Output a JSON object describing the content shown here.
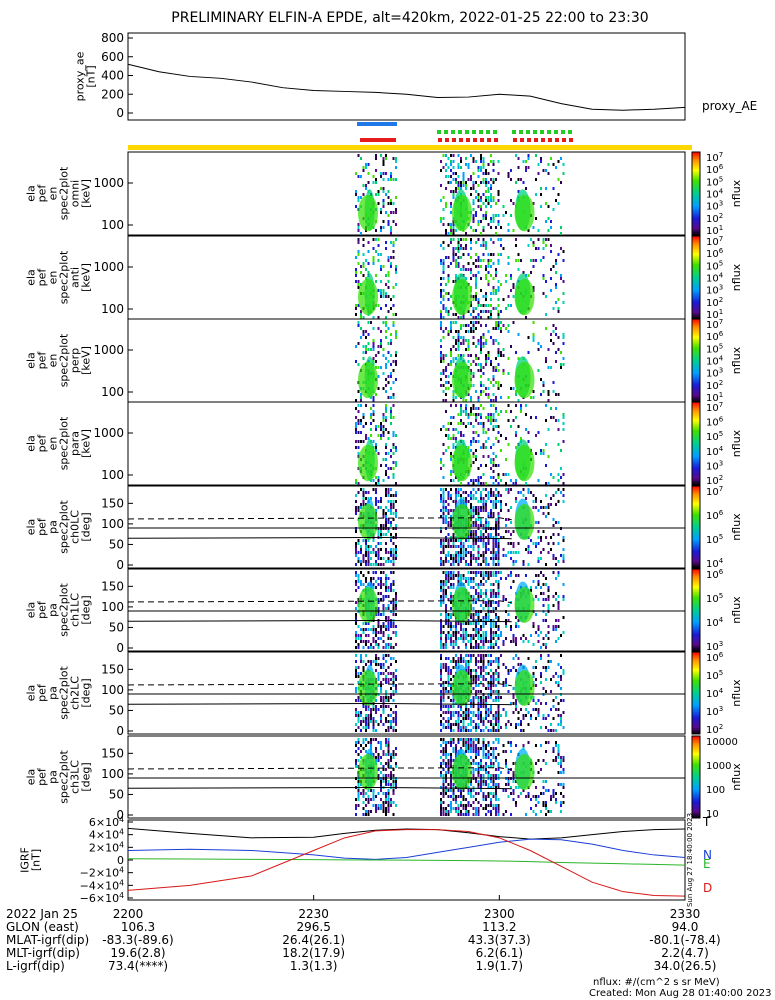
{
  "title": "PRELIMINARY ELFIN-A EPDE, alt=420km, 2022-01-25 22:00 to 23:30",
  "ae_panel": {
    "ylabel": "proxy_ae\n[nT]",
    "series_name": "proxy_AE",
    "yticks": [
      "800",
      "600",
      "400",
      "200",
      "0"
    ]
  },
  "energy_panels": [
    {
      "ylabel_lines": [
        "ela",
        "pef",
        "en",
        "spec2plot",
        "omni",
        "[keV]"
      ],
      "yticks": [
        "1000",
        "100"
      ],
      "cbar_ticks": [
        "10^7",
        "10^6",
        "10^5",
        "10^4",
        "10^3",
        "10^2",
        "10^1"
      ],
      "cbar_label": "nflux"
    },
    {
      "ylabel_lines": [
        "ela",
        "pef",
        "en",
        "spec2plot",
        "anti",
        "[keV]"
      ],
      "yticks": [
        "1000",
        "100"
      ],
      "cbar_ticks": [
        "10^7",
        "10^6",
        "10^5",
        "10^4",
        "10^3",
        "10^2",
        "10^1"
      ],
      "cbar_label": "nflux"
    },
    {
      "ylabel_lines": [
        "ela",
        "pef",
        "en",
        "spec2plot",
        "perp",
        "[keV]"
      ],
      "yticks": [
        "1000",
        "100"
      ],
      "cbar_ticks": [
        "10^7",
        "10^6",
        "10^5",
        "10^4",
        "10^3",
        "10^2",
        "10^1"
      ],
      "cbar_label": "nflux"
    },
    {
      "ylabel_lines": [
        "ela",
        "pef",
        "en",
        "spec2plot",
        "para",
        "[keV]"
      ],
      "yticks": [
        "1000",
        "100"
      ],
      "cbar_ticks": [
        "10^7",
        "10^6",
        "10^5",
        "10^4",
        "10^3",
        "10^2"
      ],
      "cbar_label": "nflux"
    }
  ],
  "pa_panels": [
    {
      "ylabel_lines": [
        "ela",
        "pef",
        "pa",
        "spec2plot",
        "ch0LC",
        "[deg]"
      ],
      "yticks": [
        "150",
        "100",
        "50",
        "0"
      ],
      "cbar_ticks": [
        "10^7",
        "10^6",
        "10^5",
        "10^4"
      ],
      "cbar_label": "nflux"
    },
    {
      "ylabel_lines": [
        "ela",
        "pef",
        "pa",
        "spec2plot",
        "ch1LC",
        "[deg]"
      ],
      "yticks": [
        "150",
        "100",
        "50",
        "0"
      ],
      "cbar_ticks": [
        "10^6",
        "10^5",
        "10^4",
        "10^3"
      ],
      "cbar_label": "nflux"
    },
    {
      "ylabel_lines": [
        "ela",
        "pef",
        "pa",
        "spec2plot",
        "ch2LC",
        "[deg]"
      ],
      "yticks": [
        "150",
        "100",
        "50",
        "0"
      ],
      "cbar_ticks": [
        "10^6",
        "10^5",
        "10^4",
        "10^3",
        "10^2"
      ],
      "cbar_label": "nflux"
    },
    {
      "ylabel_lines": [
        "ela",
        "pef",
        "pa",
        "spec2plot",
        "ch3LC",
        "[deg]"
      ],
      "yticks": [
        "150",
        "100",
        "50",
        "0"
      ],
      "cbar_ticks": [
        "10000",
        "1000",
        "100",
        "10"
      ],
      "cbar_label": "nflux"
    }
  ],
  "igrf_panel": {
    "ylabel_lines": [
      "IGRF",
      "[nT]"
    ],
    "yticks": [
      "6×10^4",
      "4×10^4",
      "2×10^4",
      "0",
      "−2×10^4",
      "−4×10^4",
      "−6×10^4"
    ],
    "legend": [
      {
        "name": "T",
        "color": "#000000"
      },
      {
        "name": "N",
        "color": "#1a3fd6"
      },
      {
        "name": "E",
        "color": "#2bb52b"
      },
      {
        "name": "D",
        "color": "#d81818"
      }
    ],
    "side_stamp": "Sun Aug 27 18:40:00 2023"
  },
  "footer": {
    "date": "2022 Jan 25",
    "time_ticks": [
      "2200",
      "2230",
      "2300",
      "2330"
    ],
    "rows": [
      {
        "label": "GLON (east)",
        "values": [
          "106.3",
          "296.5",
          "113.2",
          "94.0"
        ]
      },
      {
        "label": "MLAT-igrf(dip)",
        "values": [
          "-83.3(-89.6)",
          "26.4(26.1)",
          "43.3(37.3)",
          "-80.1(-78.4)"
        ]
      },
      {
        "label": "MLT-igrf(dip)",
        "values": [
          "19.6(2.8)",
          "18.2(17.9)",
          "6.2(6.1)",
          "2.2(4.7)"
        ]
      },
      {
        "label": "L-igrf(dip)",
        "values": [
          "73.4(****)",
          "1.3(1.3)",
          "1.9(1.7)",
          "34.0(26.5)"
        ]
      }
    ],
    "units_note": "nflux: #/(cm^2 s sr MeV)",
    "created": "Created: Mon Aug 28 01:40:00 2023"
  },
  "colors": {
    "orbit_bar_blue": "#1e78e8",
    "green_ticks": "#22cc22",
    "red_ticks": "#e61b1b",
    "yellow_bar": "#ffd700",
    "orange_bar": "#ff8c00"
  },
  "chart_data": {
    "type": "heatmap",
    "x_range": [
      "22:00",
      "23:30"
    ],
    "ae": {
      "series_name": "proxy_AE",
      "x_minutes": [
        0,
        5,
        10,
        15,
        20,
        25,
        30,
        35,
        40,
        45,
        50,
        55,
        60,
        65,
        70,
        75,
        80,
        85,
        90
      ],
      "values": [
        520,
        440,
        390,
        370,
        330,
        270,
        240,
        230,
        220,
        200,
        165,
        170,
        200,
        180,
        100,
        40,
        30,
        40,
        60
      ],
      "ylim": [
        0,
        800
      ]
    },
    "energy_ylim_keV": [
      63,
      7000
    ],
    "pa_ylim_deg": [
      0,
      180
    ],
    "activity_intervals_minutes": [
      [
        37.5,
        40.5
      ],
      [
        48.5,
        54.5
      ],
      [
        54.5,
        63
      ]
    ],
    "igrf": {
      "ylim": [
        -60000,
        60000
      ],
      "x_minutes": [
        0,
        10,
        20,
        30,
        35,
        40,
        45,
        50,
        55,
        60,
        65,
        70,
        75,
        80,
        85,
        90
      ],
      "T": [
        50000,
        42000,
        35000,
        36000,
        42000,
        47000,
        49000,
        48000,
        43000,
        37000,
        33000,
        35000,
        40000,
        45000,
        48000,
        49000
      ],
      "N": [
        15000,
        17000,
        15000,
        8000,
        3000,
        1000,
        4000,
        12000,
        20000,
        28000,
        33000,
        32000,
        25000,
        15000,
        8000,
        4000
      ],
      "E": [
        2000,
        1500,
        1000,
        500,
        200,
        0,
        -200,
        -500,
        -1000,
        -1500,
        -2500,
        -4000,
        -5000,
        -6000,
        -7000,
        -8000
      ],
      "D": [
        -48000,
        -40000,
        -25000,
        15000,
        35000,
        46000,
        48000,
        48000,
        45000,
        35000,
        15000,
        -10000,
        -35000,
        -50000,
        -56000,
        -57000
      ]
    }
  }
}
